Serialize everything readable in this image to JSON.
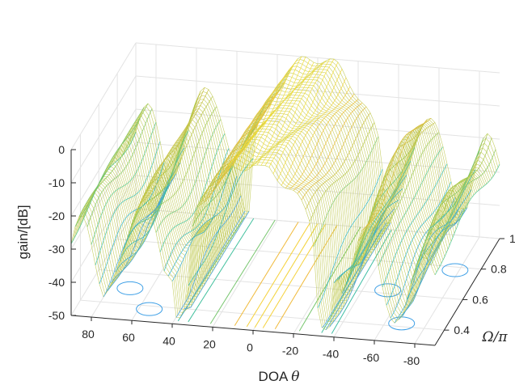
{
  "chart_data": {
    "type": "3d-mesh",
    "xlabel": "DOA",
    "xlabel_symbol": "θ",
    "ylabel": "Ω/π",
    "zlabel": "gain/[dB]",
    "x_range": [
      90,
      -90
    ],
    "y_range": [
      0.3,
      1
    ],
    "z_range": [
      -50,
      0
    ],
    "x_ticks": [
      "80",
      "60",
      "40",
      "20",
      "0",
      "-20",
      "-40",
      "-60",
      "-80"
    ],
    "y_ticks": [
      "0.4",
      "0.6",
      "0.8",
      "1"
    ],
    "z_ticks": [
      "0",
      "-10",
      "-20",
      "-30",
      "-40",
      "-50"
    ],
    "main_lobe": {
      "center_deg": 0,
      "peak_gain_db": 0
    },
    "nulls_deg": [
      35,
      -35
    ],
    "sidelobe_peaks": [
      {
        "doa_deg": 55,
        "gain_db": -12
      },
      {
        "doa_deg": -55,
        "gain_db": -12
      },
      {
        "doa_deg": 85,
        "gain_db": -18
      },
      {
        "doa_deg": -85,
        "gain_db": -18
      }
    ],
    "grid": true,
    "colormap": "parula",
    "colormap_colors": [
      "#3d9fe6",
      "#2fb6c7",
      "#4ac48e",
      "#a9c94a",
      "#f0b93a",
      "#f8e03a"
    ],
    "floor_contours": true
  }
}
